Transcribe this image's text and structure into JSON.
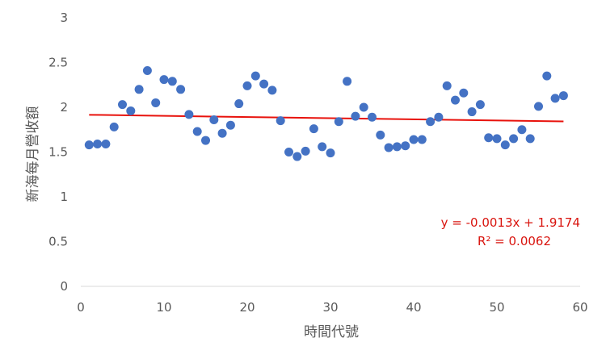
{
  "chart_data": {
    "type": "scatter",
    "title": "",
    "xlabel": "時間代號",
    "ylabel": "新海每月營收額",
    "xlim": [
      0,
      60
    ],
    "ylim": [
      0,
      3
    ],
    "xticks": [
      "0",
      "10",
      "20",
      "30",
      "40",
      "50",
      "60"
    ],
    "yticks": [
      "0",
      "0.5",
      "1",
      "1.5",
      "2",
      "2.5",
      "3"
    ],
    "grid": false,
    "legend": "none",
    "marker_color": "#4472c4",
    "trendline_color": "#e8120c",
    "series": [
      {
        "x": [
          1,
          2,
          3,
          4,
          5,
          6,
          7,
          8,
          9,
          10,
          11,
          12,
          13,
          14,
          15,
          16,
          17,
          18,
          19,
          20,
          21,
          22,
          23,
          24,
          25,
          26,
          27,
          28,
          29,
          30,
          31,
          32,
          33,
          34,
          35,
          36,
          37,
          38,
          39,
          40,
          41,
          42,
          43,
          44,
          45,
          46,
          47,
          48,
          49,
          50,
          51,
          52,
          53,
          54,
          55,
          56,
          57,
          58
        ],
        "y": [
          1.58,
          1.59,
          1.59,
          1.78,
          2.03,
          1.96,
          2.2,
          2.41,
          2.05,
          2.31,
          2.29,
          2.2,
          1.92,
          1.73,
          1.63,
          1.86,
          1.71,
          1.8,
          2.04,
          2.24,
          2.35,
          2.26,
          2.19,
          1.85,
          1.5,
          1.45,
          1.51,
          1.76,
          1.56,
          1.49,
          1.84,
          2.29,
          1.9,
          2.0,
          1.89,
          1.69,
          1.55,
          1.56,
          1.57,
          1.64,
          1.64,
          1.84,
          1.89,
          2.24,
          2.08,
          2.16,
          1.95,
          2.03,
          1.66,
          1.65,
          1.58,
          1.65,
          1.75,
          1.65,
          2.01,
          2.35,
          2.1,
          2.13
        ]
      }
    ],
    "trendline": {
      "slope": -0.0013,
      "intercept": 1.9174,
      "x_range": [
        1,
        58
      ],
      "equation": "y = -0.0013x + 1.9174",
      "r_squared": "R² = 0.0062"
    }
  }
}
